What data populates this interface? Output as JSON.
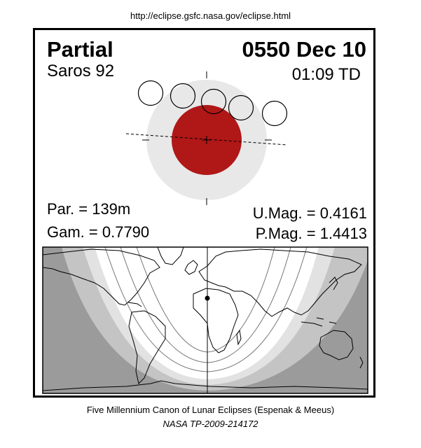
{
  "header": {
    "url": "http://eclipse.gsfc.nasa.gov/eclipse.html"
  },
  "eclipse": {
    "type": "Partial",
    "date": "0550 Dec 10",
    "saros": "Saros  92",
    "time": "01:09 TD",
    "parameters": {
      "partial_duration": "Par. = 139m",
      "gamma": "Gam. = 0.7790",
      "umbral_magnitude": "U.Mag. = 0.4161",
      "penumbral_magnitude": "P.Mag. = 1.4413"
    }
  },
  "colors": {
    "penumbra": "#e8e8e8",
    "umbra": "#b01717",
    "night": "#9b9b9b",
    "zone_mid": "#c4c4c4",
    "zone_light": "#e2e2e2",
    "day": "#ffffff"
  },
  "footer": {
    "line1": "Five Millennium Canon of Lunar Eclipses (Espenak & Meeus)",
    "line2": "NASA TP-2009-214172"
  }
}
